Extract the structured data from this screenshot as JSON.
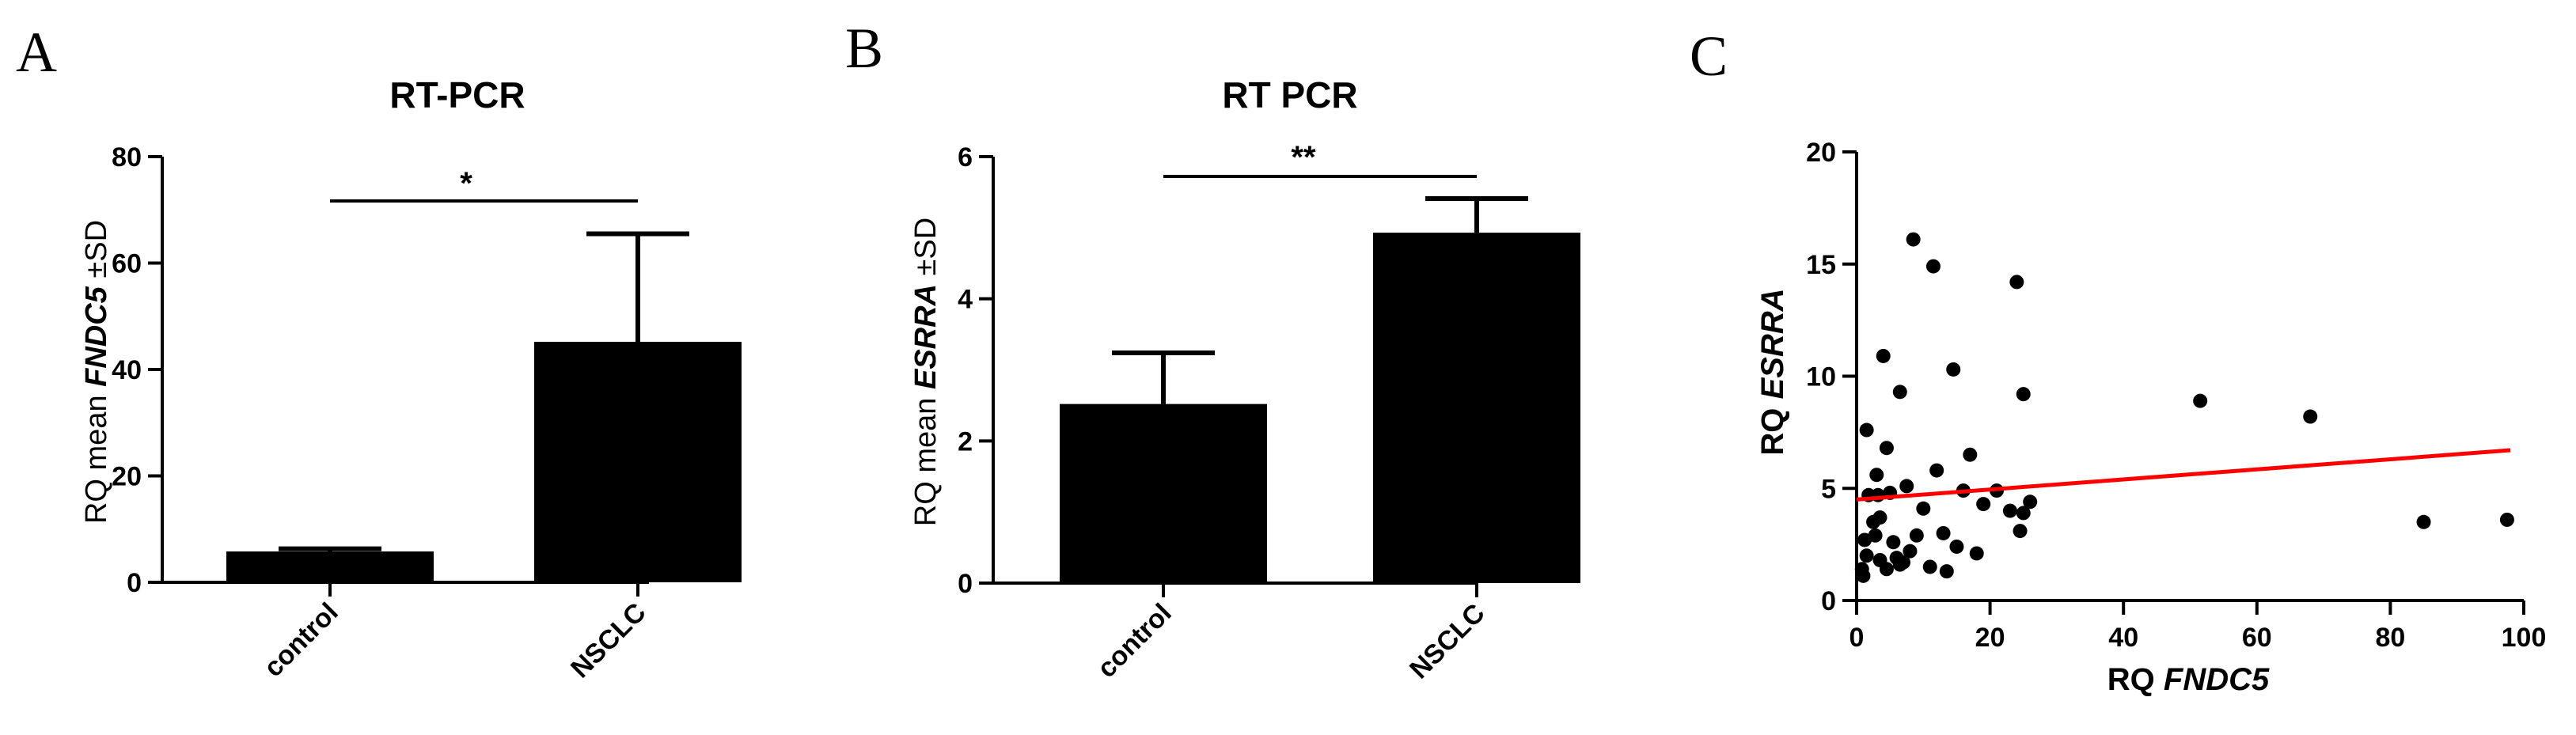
{
  "panels": {
    "A": {
      "letter": "A",
      "title": "RT-PCR",
      "ylabel_prefix": "RQ mean ",
      "ylabel_gene": "FNDC5",
      "ylabel_suffix": " ±SD",
      "significance": "*"
    },
    "B": {
      "letter": "B",
      "title": "RT PCR",
      "ylabel_prefix": "RQ mean ",
      "ylabel_gene": "ESRRA",
      "ylabel_suffix": " ±SD",
      "significance": "**"
    },
    "C": {
      "letter": "C",
      "xlabel_prefix": "RQ ",
      "xlabel_gene": "FNDC5",
      "ylabel_prefix": "RQ ",
      "ylabel_gene": "ESRRA"
    }
  },
  "chart_data": [
    {
      "type": "bar",
      "panel": "A",
      "title": "RT-PCR",
      "categories": [
        "control",
        "NSCLC"
      ],
      "values": [
        5.8,
        45.2
      ],
      "error_sd": [
        0.5,
        20.3
      ],
      "ylabel": "RQ mean FNDC5 ±SD",
      "ylim": [
        0,
        80
      ],
      "yticks": [
        0,
        20,
        40,
        60,
        80
      ],
      "significance": {
        "between": [
          "control",
          "NSCLC"
        ],
        "label": "*"
      },
      "color": "#000000"
    },
    {
      "type": "bar",
      "panel": "B",
      "title": "RT PCR",
      "categories": [
        "control",
        "NSCLC"
      ],
      "values": [
        2.52,
        4.93
      ],
      "error_sd": [
        0.72,
        0.48
      ],
      "ylabel": "RQ mean ESRRA ±SD",
      "ylim": [
        0,
        6
      ],
      "yticks": [
        0,
        2,
        4,
        6
      ],
      "significance": {
        "between": [
          "control",
          "NSCLC"
        ],
        "label": "**"
      },
      "color": "#000000"
    },
    {
      "type": "scatter",
      "panel": "C",
      "xlabel": "RQ FNDC5",
      "ylabel": "RQ ESRRA",
      "xlim": [
        0,
        100
      ],
      "ylim": [
        0,
        20
      ],
      "xticks": [
        0,
        20,
        40,
        60,
        80,
        100
      ],
      "yticks": [
        0,
        5,
        10,
        15,
        20
      ],
      "point_color": "#000000",
      "fit_line": {
        "x": [
          0,
          98
        ],
        "y": [
          4.5,
          6.7
        ],
        "color": "#ff0000"
      },
      "points": [
        [
          8.5,
          16.1
        ],
        [
          11.5,
          14.9
        ],
        [
          24,
          14.2
        ],
        [
          4,
          10.9
        ],
        [
          14.5,
          10.3
        ],
        [
          6.5,
          9.3
        ],
        [
          25,
          9.2
        ],
        [
          51.5,
          8.9
        ],
        [
          68,
          8.2
        ],
        [
          1.5,
          7.6
        ],
        [
          4.5,
          6.8
        ],
        [
          17,
          6.5
        ],
        [
          3,
          5.6
        ],
        [
          12,
          5.8
        ],
        [
          16,
          4.9
        ],
        [
          21,
          4.9
        ],
        [
          7.5,
          5.1
        ],
        [
          1.8,
          4.7
        ],
        [
          3.2,
          4.7
        ],
        [
          5,
          4.8
        ],
        [
          26,
          4.4
        ],
        [
          19,
          4.3
        ],
        [
          10,
          4.1
        ],
        [
          23,
          4.0
        ],
        [
          25,
          3.9
        ],
        [
          2.5,
          3.5
        ],
        [
          3.5,
          3.7
        ],
        [
          85,
          3.5
        ],
        [
          97.5,
          3.6
        ],
        [
          24.5,
          3.1
        ],
        [
          9,
          2.9
        ],
        [
          13,
          3.0
        ],
        [
          15,
          2.4
        ],
        [
          1.2,
          2.7
        ],
        [
          2.8,
          2.9
        ],
        [
          5.5,
          2.6
        ],
        [
          8,
          2.2
        ],
        [
          6,
          1.9
        ],
        [
          18,
          2.1
        ],
        [
          1.5,
          2.0
        ],
        [
          3.5,
          1.8
        ],
        [
          7,
          1.7
        ],
        [
          11,
          1.5
        ],
        [
          13.5,
          1.3
        ],
        [
          0.8,
          1.4
        ],
        [
          1,
          1.1
        ],
        [
          4.5,
          1.4
        ],
        [
          6.5,
          1.6
        ]
      ]
    }
  ]
}
